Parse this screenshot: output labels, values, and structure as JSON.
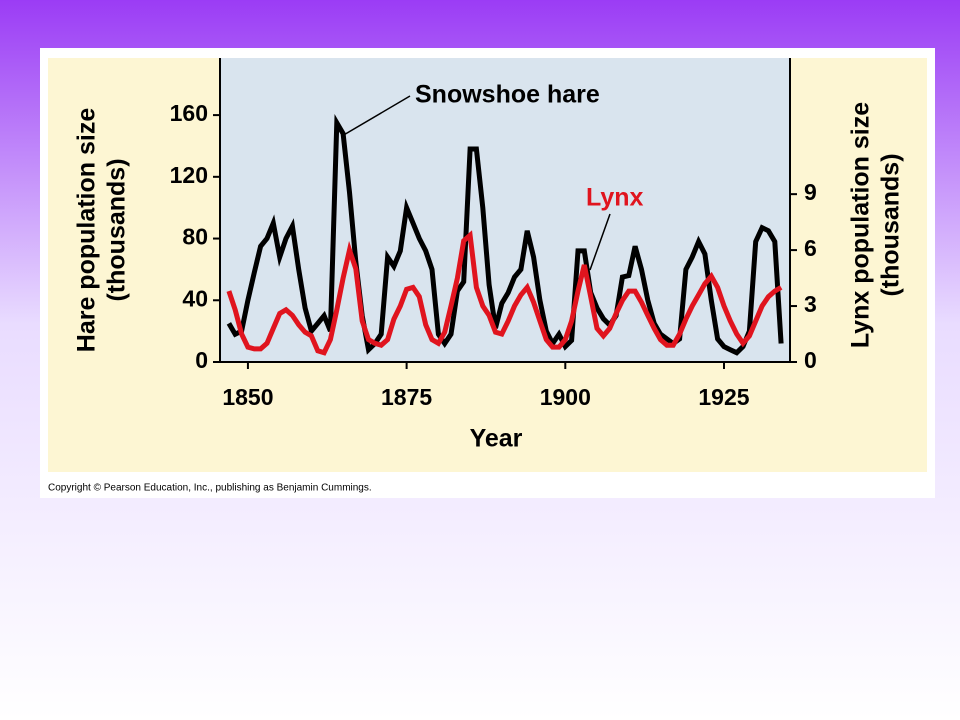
{
  "chart_data": {
    "type": "line",
    "x": [
      1847,
      1848,
      1849,
      1850,
      1851,
      1852,
      1853,
      1854,
      1855,
      1856,
      1857,
      1858,
      1859,
      1860,
      1861,
      1862,
      1863,
      1864,
      1865,
      1866,
      1867,
      1868,
      1869,
      1870,
      1871,
      1872,
      1873,
      1874,
      1875,
      1876,
      1877,
      1878,
      1879,
      1880,
      1881,
      1882,
      1883,
      1884,
      1885,
      1886,
      1887,
      1888,
      1889,
      1890,
      1891,
      1892,
      1893,
      1894,
      1895,
      1896,
      1897,
      1898,
      1899,
      1900,
      1901,
      1902,
      1903,
      1904,
      1905,
      1906,
      1907,
      1908,
      1909,
      1910,
      1911,
      1912,
      1913,
      1914,
      1915,
      1916,
      1917,
      1918,
      1919,
      1920,
      1921,
      1922,
      1923,
      1924,
      1925,
      1926,
      1927,
      1928,
      1929,
      1930,
      1931,
      1932,
      1933,
      1934
    ],
    "series": [
      {
        "name": "Snowshoe hare",
        "color": "#000000",
        "axis": "y",
        "values": [
          25,
          18,
          20,
          40,
          58,
          75,
          80,
          90,
          68,
          80,
          88,
          60,
          35,
          20,
          25,
          30,
          20,
          155,
          148,
          110,
          65,
          30,
          8,
          12,
          18,
          68,
          62,
          72,
          100,
          90,
          80,
          72,
          60,
          18,
          12,
          18,
          46,
          52,
          138,
          138,
          100,
          50,
          22,
          38,
          45,
          55,
          60,
          85,
          68,
          40,
          20,
          12,
          18,
          10,
          14,
          72,
          72,
          45,
          35,
          28,
          24,
          30,
          55,
          56,
          75,
          60,
          40,
          25,
          18,
          15,
          12,
          15,
          60,
          68,
          78,
          70,
          40,
          15,
          10,
          8,
          6,
          10,
          20,
          78,
          87,
          85,
          78,
          12
        ]
      },
      {
        "name": "Lynx",
        "color": "#e0141e",
        "axis": "y2",
        "values": [
          3.8,
          2.8,
          1.5,
          0.8,
          0.7,
          0.7,
          1.0,
          1.8,
          2.6,
          2.8,
          2.5,
          2.0,
          1.6,
          1.4,
          0.6,
          0.5,
          1.2,
          2.8,
          4.5,
          6.0,
          5.0,
          2.2,
          1.2,
          1.0,
          0.9,
          1.2,
          2.3,
          3.0,
          3.9,
          4.0,
          3.5,
          2.0,
          1.2,
          1.0,
          1.6,
          3.0,
          4.5,
          6.5,
          6.8,
          4.0,
          3.0,
          2.5,
          1.6,
          1.5,
          2.2,
          3.0,
          3.6,
          4.0,
          3.2,
          2.2,
          1.2,
          0.8,
          0.8,
          1.2,
          2.2,
          3.8,
          5.2,
          3.5,
          1.8,
          1.4,
          1.8,
          2.6,
          3.3,
          3.8,
          3.8,
          3.2,
          2.5,
          1.8,
          1.2,
          0.9,
          0.9,
          1.5,
          2.3,
          3.0,
          3.6,
          4.2,
          4.6,
          4.0,
          3.0,
          2.2,
          1.5,
          1.0,
          1.4,
          2.2,
          3.0,
          3.5,
          3.8,
          4.0
        ]
      }
    ],
    "xlabel": "Year",
    "ylabel": [
      "Hare population size",
      "(thousands)"
    ],
    "y2label": [
      "Lynx population size",
      "(thousands)"
    ],
    "xlim": [
      1845.6,
      1935.4
    ],
    "xticks": [
      1850,
      1875,
      1900,
      1925
    ],
    "ylim": [
      0,
      197
    ],
    "yticks": [
      0,
      40,
      80,
      120,
      160
    ],
    "y2lim": [
      0,
      16.3
    ],
    "y2ticks": [
      0,
      3,
      6,
      9
    ],
    "plot_background": "#d9e4ee"
  },
  "footer": "Copyright © Pearson Education, Inc., publishing as Benjamin Cummings."
}
